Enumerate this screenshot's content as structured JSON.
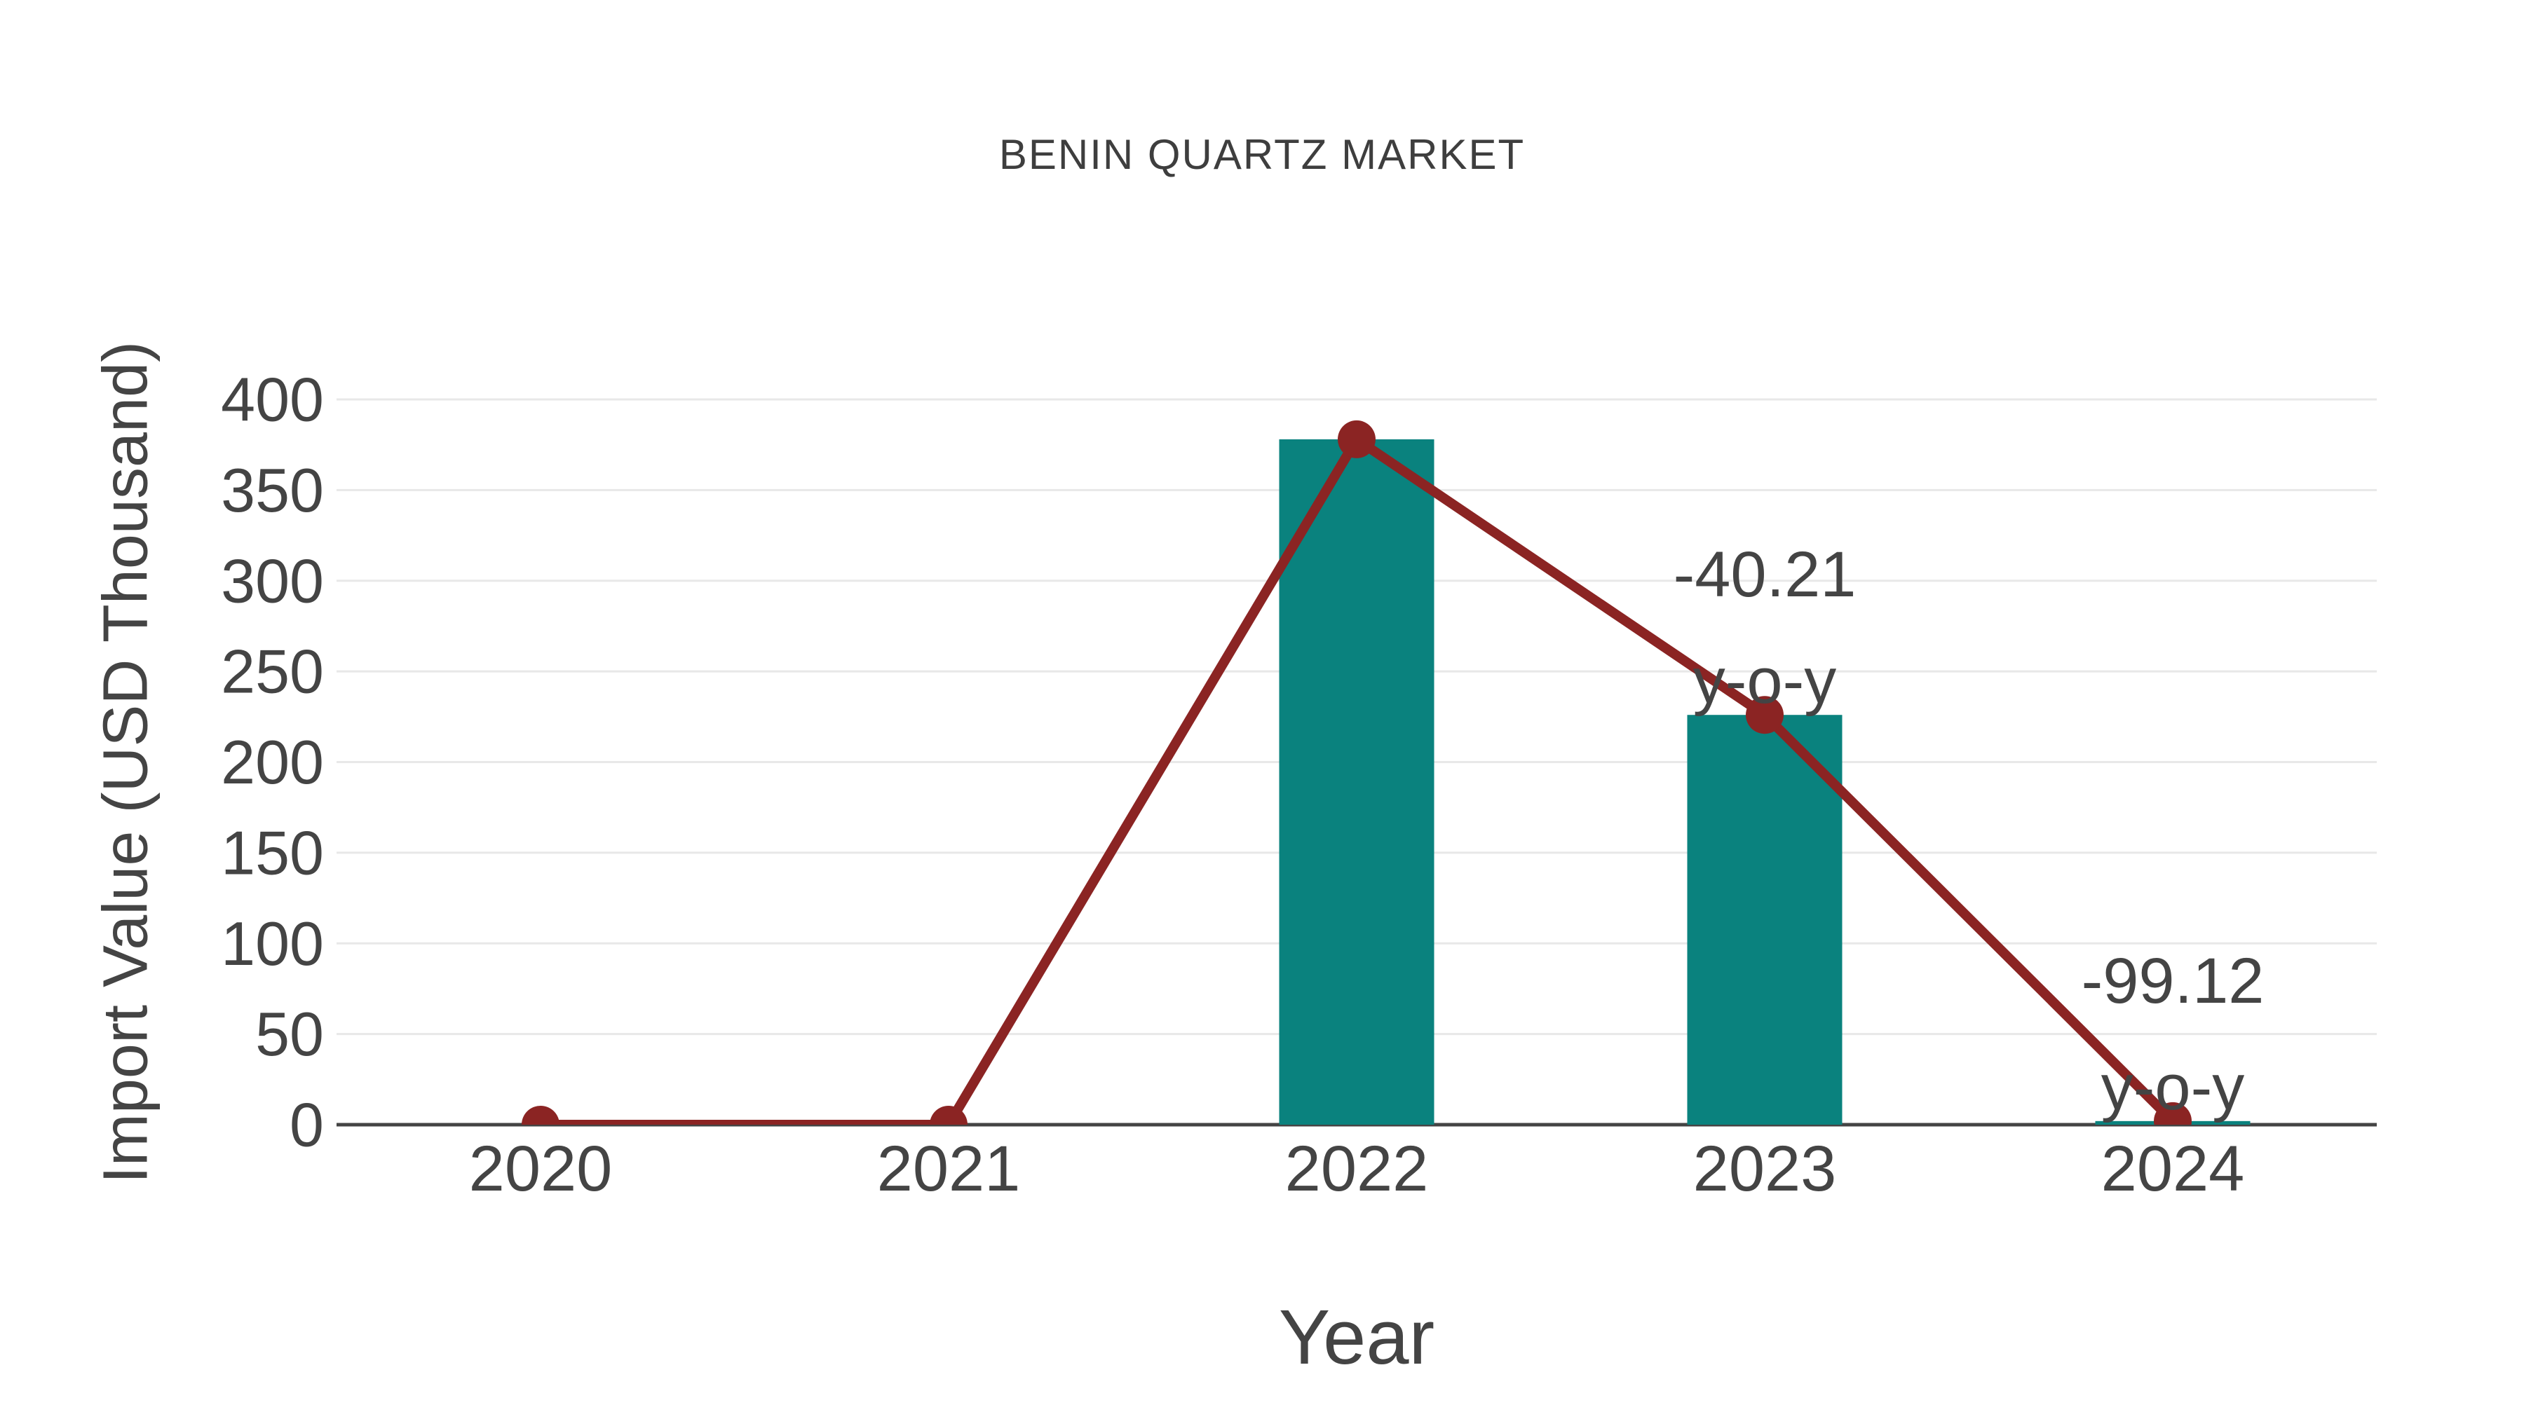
{
  "page": {
    "background_color": "#FFFFFF"
  },
  "chart_data": {
    "type": "bar",
    "subtype": "bar-line-combo",
    "title": "BENIN QUARTZ MARKET",
    "xlabel": "Year",
    "ylabel": "Import Value (USD Thousand)",
    "categories": [
      "2020",
      "2021",
      "2022",
      "2023",
      "2024"
    ],
    "series": [
      {
        "name": "Import Value bars",
        "type": "bar",
        "color": "#0A827E",
        "values": [
          null,
          null,
          378,
          226,
          2
        ]
      },
      {
        "name": "Import Value line",
        "type": "line",
        "color": "#8B2423",
        "values": [
          0,
          0,
          378,
          226,
          2
        ]
      }
    ],
    "annotations": [
      {
        "category": "2023",
        "lines": [
          "-40.21",
          "y-o-y"
        ]
      },
      {
        "category": "2024",
        "lines": [
          "-99.12",
          "y-o-y"
        ]
      }
    ],
    "ylim": [
      0,
      400
    ],
    "yticks": [
      0,
      50,
      100,
      150,
      200,
      250,
      300,
      350,
      400
    ],
    "grid": true,
    "legend_position": "none",
    "text_color": "#444444",
    "title_color": "#3E3E3E",
    "grid_color": "#E8E8E8",
    "axis_line_color": "#444444"
  }
}
